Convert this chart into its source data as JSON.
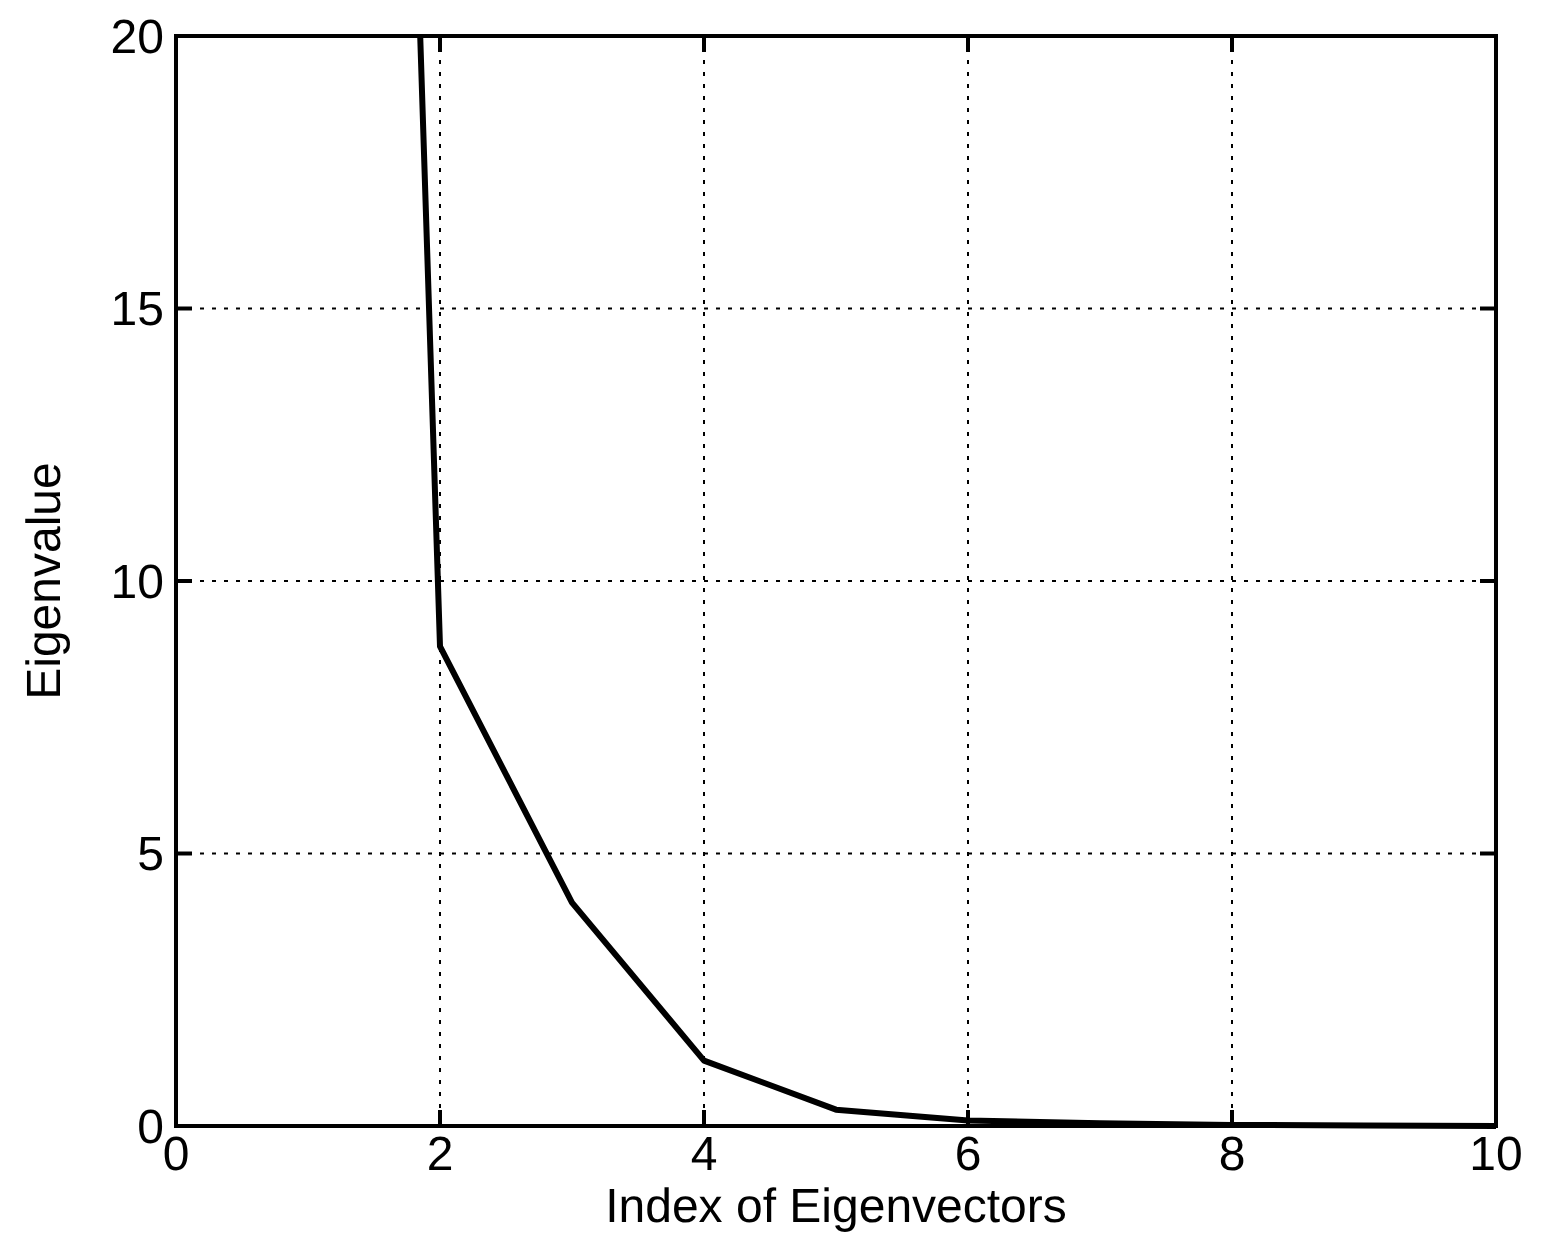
{
  "chart_data": {
    "type": "line",
    "xlabel": "Index of Eigenvectors",
    "ylabel": "Eigenvalue",
    "x": [
      1.85,
      2,
      3,
      4,
      5,
      6,
      7,
      8,
      9,
      10
    ],
    "values": [
      20,
      8.8,
      4.1,
      1.2,
      0.3,
      0.1,
      0.05,
      0.02,
      0.01,
      0
    ],
    "color": "#000000",
    "xlim": [
      0,
      10
    ],
    "ylim": [
      0,
      20
    ],
    "xticks": [
      0,
      2,
      4,
      6,
      8,
      10
    ],
    "yticks": [
      0,
      5,
      10,
      15,
      20
    ],
    "grid": true,
    "marker": "none",
    "line_style": "solid"
  }
}
